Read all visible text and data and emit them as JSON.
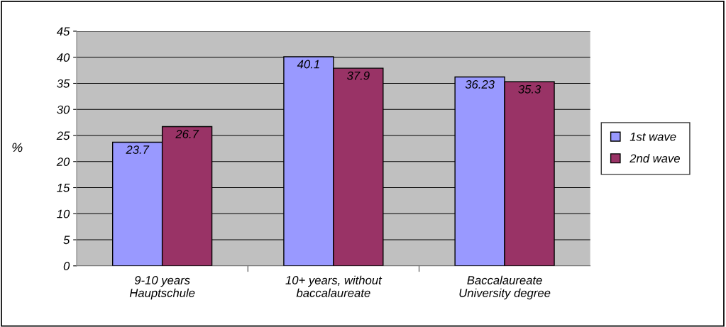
{
  "chart_data": {
    "type": "bar",
    "ylabel": "%",
    "categories": [
      "9-10 years\nHauptschule",
      "10+ years, without\nbaccalaureate",
      "Baccalaureate\nUniversity degree"
    ],
    "series": [
      {
        "name": "1st wave",
        "color": "#9999ff",
        "values": [
          23.7,
          40.1,
          36.23
        ]
      },
      {
        "name": "2nd wave",
        "color": "#993366",
        "values": [
          26.7,
          37.9,
          35.3
        ]
      }
    ],
    "ylim": [
      0,
      45
    ],
    "yticks": [
      0,
      5,
      10,
      15,
      20,
      25,
      30,
      35,
      40,
      45
    ],
    "grid": "y",
    "legend": "right",
    "data_labels": true
  }
}
